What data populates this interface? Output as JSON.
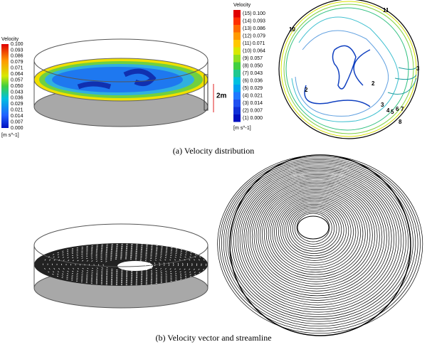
{
  "panel_a": {
    "left_legend": {
      "title": "Velocity",
      "ticks": [
        "0.100",
        "0.093",
        "0.086",
        "0.079",
        "0.071",
        "0.064",
        "0.057",
        "0.050",
        "0.043",
        "0.036",
        "0.029",
        "0.021",
        "0.014",
        "0.007",
        "0.000"
      ],
      "unit": "[m s^-1]"
    },
    "height_label": "2m",
    "contour_legend": {
      "title": "Velocity",
      "levels": [
        "(15) 0.100",
        "(14) 0.093",
        "(13) 0.086",
        "(12) 0.079",
        "(11) 0.071",
        "(10) 0.064",
        "(9) 0.057",
        "(8) 0.050",
        "(7) 0.043",
        "(6) 0.036",
        "(5) 0.029",
        "(4) 0.021",
        "(3) 0.014",
        "(2) 0.007",
        "(1) 0.000"
      ],
      "unit": "[m s^-1]"
    },
    "contour_labels": [
      "11",
      "10",
      "2",
      "2",
      "3",
      "4",
      "5",
      "6",
      "7",
      "8",
      "3"
    ],
    "caption": "(a)  Velocity distribution"
  },
  "panel_b": {
    "caption": "(b)  Velocity vector and streamline"
  }
}
